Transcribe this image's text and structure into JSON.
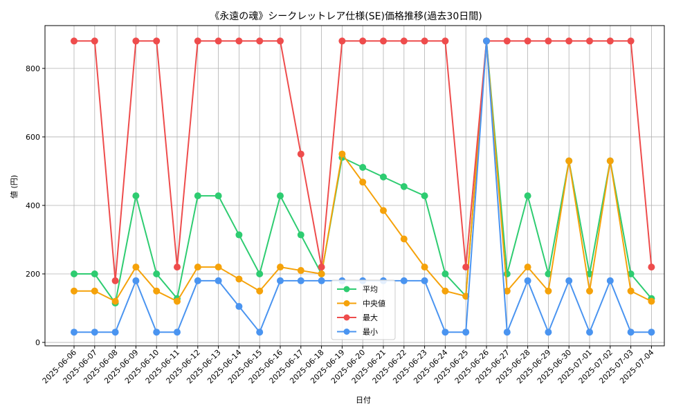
{
  "chart_data": {
    "type": "line",
    "title": "《永遠の魂》シークレットレア仕様(SE)価格推移(過去30日間)",
    "xlabel": "日付",
    "ylabel": "値 (円)",
    "ylim": [
      -10,
      925
    ],
    "yticks": [
      0,
      200,
      400,
      600,
      800
    ],
    "grid": true,
    "legend_position": "bottom-center",
    "categories": [
      "2025-06-06",
      "2025-06-07",
      "2025-06-08",
      "2025-06-09",
      "2025-06-10",
      "2025-06-11",
      "2025-06-12",
      "2025-06-13",
      "2025-06-14",
      "2025-06-15",
      "2025-06-16",
      "2025-06-17",
      "2025-06-18",
      "2025-06-19",
      "2025-06-20",
      "2025-06-21",
      "2025-06-22",
      "2025-06-23",
      "2025-06-24",
      "2025-06-25",
      "2025-06-26",
      "2025-06-27",
      "2025-06-28",
      "2025-06-29",
      "2025-06-30",
      "2025-07-01",
      "2025-07-02",
      "2025-07-03",
      "2025-07-04"
    ],
    "series": [
      {
        "name": "平均",
        "color": "#2ecc71",
        "values": [
          200,
          200,
          115,
          428,
          200,
          128,
          428,
          428,
          314,
          200,
          428,
          314,
          200,
          540,
          511,
          483,
          455,
          428,
          200,
          135,
          880,
          200,
          428,
          200,
          530,
          200,
          530,
          200,
          128
        ]
      },
      {
        "name": "中央値",
        "color": "#f5a20a",
        "values": [
          150,
          150,
          120,
          220,
          150,
          120,
          220,
          220,
          185,
          150,
          220,
          210,
          200,
          550,
          468,
          385,
          302,
          220,
          150,
          135,
          880,
          150,
          220,
          150,
          530,
          150,
          530,
          150,
          120
        ]
      },
      {
        "name": "最大",
        "color": "#ee4c4c",
        "values": [
          880,
          880,
          180,
          880,
          880,
          220,
          880,
          880,
          880,
          880,
          880,
          550,
          220,
          880,
          880,
          880,
          880,
          880,
          880,
          220,
          880,
          880,
          880,
          880,
          880,
          880,
          880,
          880,
          220
        ]
      },
      {
        "name": "最小",
        "color": "#4a94f0",
        "values": [
          30,
          30,
          30,
          180,
          30,
          30,
          180,
          180,
          105,
          30,
          180,
          180,
          180,
          180,
          180,
          180,
          180,
          180,
          30,
          30,
          880,
          30,
          180,
          30,
          180,
          30,
          180,
          30,
          30
        ]
      }
    ]
  }
}
